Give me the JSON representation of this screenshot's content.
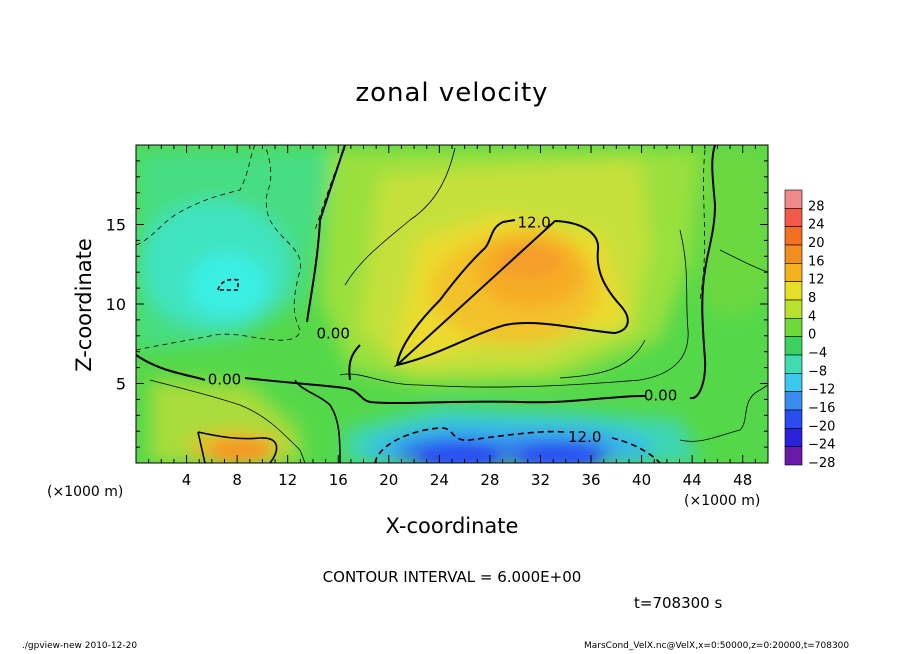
{
  "chart_data": {
    "type": "heatmap",
    "title": "zonal velocity",
    "xlabel": "X-coordinate",
    "ylabel": "Z-coordinate",
    "x_unit": "(×1000 m)",
    "xlim": [
      0,
      50
    ],
    "ylim": [
      0,
      20
    ],
    "x_ticks": [
      4,
      8,
      12,
      16,
      20,
      24,
      28,
      32,
      36,
      40,
      44,
      48
    ],
    "y_ticks": [
      5,
      10,
      15
    ],
    "colorbar": {
      "levels": [
        -28,
        -24,
        -20,
        -16,
        -12,
        -8,
        -4,
        0,
        4,
        8,
        12,
        16,
        20,
        24,
        28
      ],
      "labels": [
        "28",
        "24",
        "20",
        "16",
        "12",
        "8",
        "4",
        "0",
        "−4",
        "−8",
        "−12",
        "−16",
        "−20",
        "−24",
        "−28"
      ]
    },
    "contour_interval_text": "CONTOUR INTERVAL = 6.000E+00",
    "contour_labels": [
      {
        "text": "12.0",
        "x": 31.5,
        "z": 15.2
      },
      {
        "text": "0.00",
        "x": 15.6,
        "z": 8.2
      },
      {
        "text": "0.00",
        "x": 7.0,
        "z": 5.3
      },
      {
        "text": "0.00",
        "x": 41.5,
        "z": 4.3
      },
      {
        "text": "12.0",
        "x": 35.5,
        "z": 1.7
      }
    ],
    "features": [
      {
        "kind": "max",
        "x": 31,
        "z": 12.3,
        "value": 16
      },
      {
        "kind": "max",
        "x": 8.5,
        "z": 1.2,
        "value": 16
      },
      {
        "kind": "min",
        "x": 26,
        "z": 0.7,
        "value": -20
      },
      {
        "kind": "min",
        "x": 32,
        "z": 0.8,
        "value": -20
      },
      {
        "kind": "min",
        "x": 7.3,
        "z": 11.2,
        "value": -10
      }
    ],
    "time_text": "t=708300 s"
  },
  "footer": {
    "left": "./gpview-new   2010-12-20",
    "right": "MarsCond_VelX.nc@VelX,x=0:50000,z=0:20000,t=708300"
  }
}
